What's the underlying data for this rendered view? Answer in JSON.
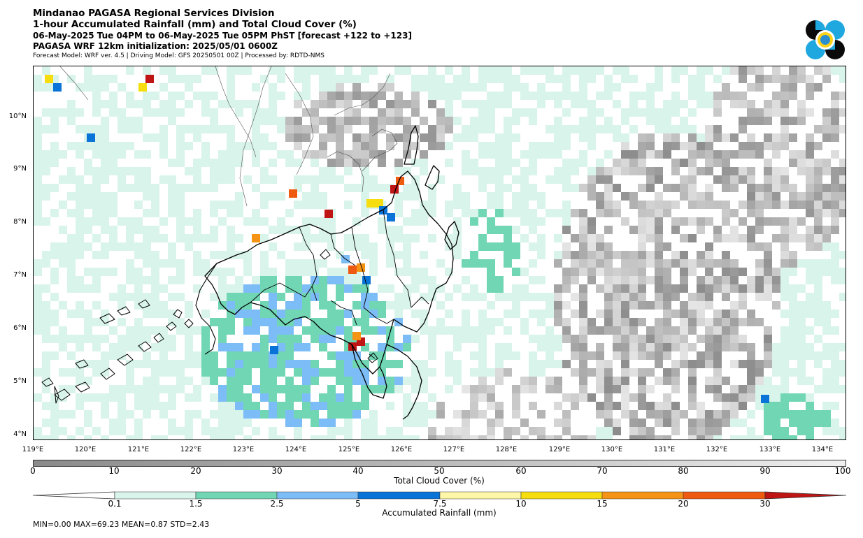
{
  "header": {
    "title": "Mindanao PAGASA Regional Services Division",
    "subtitle": "1-hour Accumulated Rainfall (mm) and Total Cloud Cover (%)",
    "period": "06-May-2025 Tue 04PM to 06-May-2025 Tue 05PM PhST [forecast +122 to +123]",
    "init": "PAGASA WRF 12km initialization: 2025/05/01 0600Z",
    "model_info": "Forecast Model: WRF ver. 4.5 | Driving Model: GFS 20250501 00Z | Processed by: RDTD-NMS"
  },
  "map": {
    "lat_labels": [
      "10°N",
      "9°N",
      "8°N",
      "7°N",
      "6°N",
      "5°N",
      "4°N"
    ],
    "lon_labels": [
      "119°E",
      "120°E",
      "121°E",
      "122°E",
      "123°E",
      "124°E",
      "125°E",
      "126°E",
      "127°E",
      "128°E",
      "129°E",
      "130°E",
      "131°E",
      "132°E",
      "133°E",
      "134°E"
    ]
  },
  "cloud_colorbar": {
    "title": "Total Cloud Cover (%)",
    "ticks": [
      "0",
      "10",
      "20",
      "30",
      "40",
      "50",
      "60",
      "70",
      "80",
      "90",
      "100"
    ]
  },
  "rain_colorbar": {
    "title": "Accumulated Rainfall (mm)",
    "ticks": [
      "0.1",
      "1.5",
      "2.5",
      "5",
      "7.5",
      "10",
      "15",
      "20",
      "30"
    ],
    "colors": [
      "#ffffff",
      "#d9f4ea",
      "#70d6b4",
      "#7dbdf7",
      "#0a73d8",
      "#fff7a8",
      "#f5dd10",
      "#f59314",
      "#ee5a10",
      "#bf1515"
    ]
  },
  "stats": {
    "text": "MIN=0.00   MAX=69.23   MEAN=0.87   STD=2.43"
  }
}
